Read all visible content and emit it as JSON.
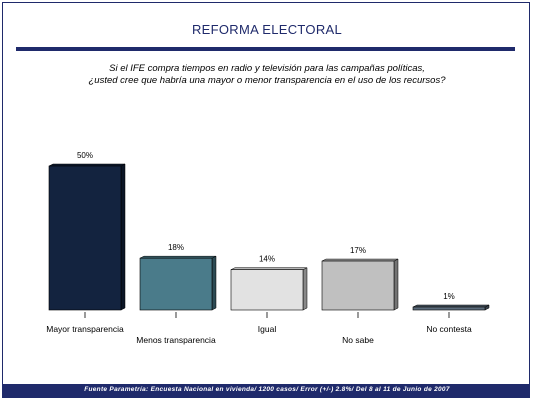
{
  "chart_data": {
    "type": "bar",
    "title": "REFORMA ELECTORAL",
    "question": [
      "Si el IFE compra tiempos en radio y televisión para las campañas políticas,",
      "¿usted cree que habría una mayor o menor transparencia en el uso de los recursos?"
    ],
    "categories": [
      "Mayor transparencia",
      "Menos transparencia",
      "Igual",
      "No sabe",
      "No contesta"
    ],
    "values": [
      50,
      18,
      14,
      17,
      1
    ],
    "data_labels": [
      "50%",
      "18%",
      "14%",
      "17%",
      "1%"
    ],
    "bar_colors": [
      "#13233f",
      "#4a7b8a",
      "#e2e2e2",
      "#c0c0c0",
      "#5b6b7b"
    ],
    "ylim": [
      0,
      50
    ],
    "xlabel": "",
    "ylabel": "",
    "grid": false,
    "legend": "none"
  },
  "footer": {
    "source": "Fuente Parametría: Encuesta Nacional en vivienda/ 1200 casos/ Error (+/-) 2.8%/ Del 8 al 11 de Junio de 2007"
  },
  "colors": {
    "brand": "#1f2a6b"
  }
}
